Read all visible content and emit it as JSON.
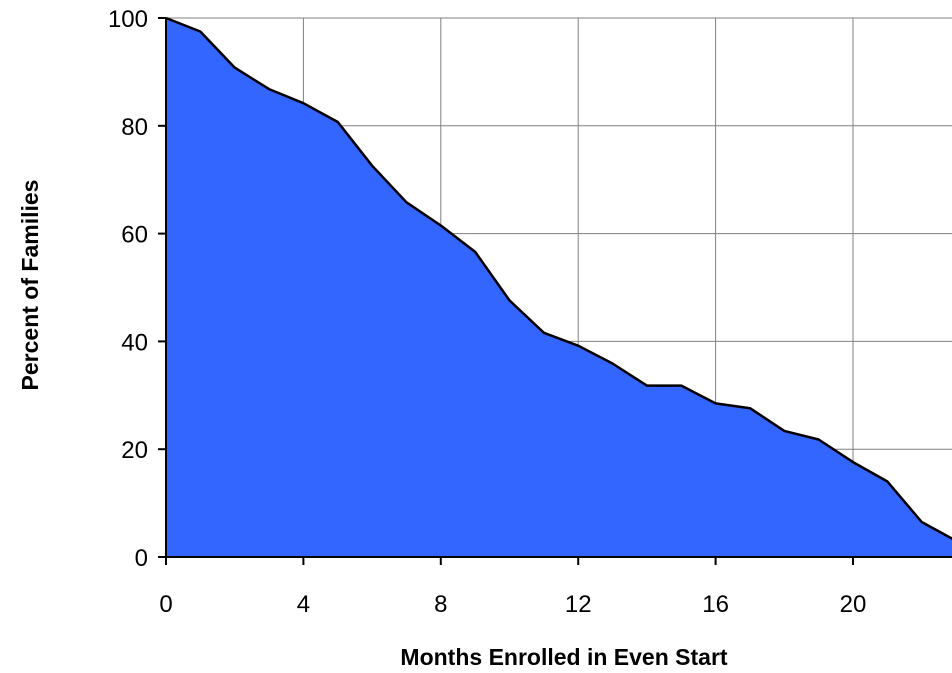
{
  "chart_data": {
    "type": "area",
    "title": "",
    "xlabel": "Months Enrolled in Even Start",
    "ylabel": "Percent of Families",
    "xlim": [
      0,
      23
    ],
    "ylim": [
      0,
      100
    ],
    "x_ticks": [
      0,
      4,
      8,
      12,
      16,
      20
    ],
    "y_ticks": [
      0,
      20,
      40,
      60,
      80,
      100
    ],
    "grid": true,
    "fill_color": "#3366FF",
    "line_color": "#000000",
    "series": [
      {
        "x": [
          0,
          1,
          2,
          3,
          4,
          5,
          6,
          7,
          8,
          9,
          10,
          11,
          12,
          13,
          14,
          15,
          16,
          17,
          18,
          19,
          20,
          21,
          22,
          23
        ],
        "values": [
          100,
          97.5,
          90.8,
          86.8,
          84.2,
          80.7,
          72.6,
          65.8,
          61.5,
          56.6,
          47.6,
          41.6,
          39.2,
          35.9,
          31.8,
          31.8,
          28.5,
          27.6,
          23.4,
          21.8,
          17.6,
          14,
          6.5,
          3
        ]
      }
    ]
  }
}
